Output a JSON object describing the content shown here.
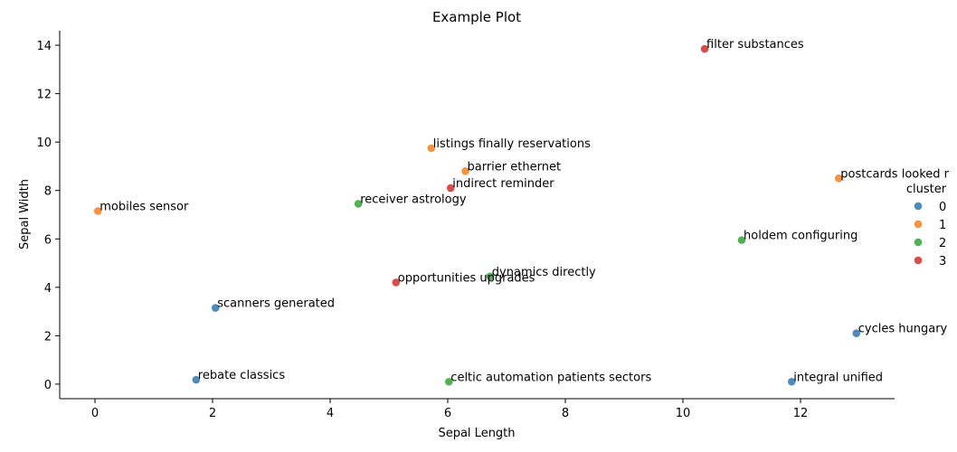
{
  "chart_data": {
    "type": "scatter",
    "title": "Example Plot",
    "xlabel": "Sepal Length",
    "ylabel": "Sepal Width",
    "xlim": [
      -0.6,
      13.6
    ],
    "ylim": [
      -0.6,
      14.6
    ],
    "xticks": [
      0,
      2,
      4,
      6,
      8,
      10,
      12
    ],
    "yticks": [
      0,
      2,
      4,
      6,
      8,
      10,
      12,
      14
    ],
    "grid": false,
    "legend": {
      "title": "cluster",
      "placement": "right"
    },
    "colors": {
      "0": "#3a7eb8",
      "1": "#f5872b",
      "2": "#3fa83f",
      "3": "#d43a36"
    },
    "series": [
      {
        "name": "0",
        "points": [
          {
            "x": 2.05,
            "y": 3.15,
            "label": "scanners generated"
          },
          {
            "x": 12.95,
            "y": 2.1,
            "label": "cycles hungary"
          },
          {
            "x": 1.72,
            "y": 0.18,
            "label": "rebate classics"
          },
          {
            "x": 11.85,
            "y": 0.1,
            "label": "integral unified"
          }
        ]
      },
      {
        "name": "1",
        "points": [
          {
            "x": 5.72,
            "y": 9.75,
            "label": "listings finally reservations"
          },
          {
            "x": 6.3,
            "y": 8.8,
            "label": "barrier ethernet"
          },
          {
            "x": 12.65,
            "y": 8.5,
            "label": "postcards looked r"
          },
          {
            "x": 0.05,
            "y": 7.15,
            "label": "mobiles sensor"
          }
        ]
      },
      {
        "name": "2",
        "points": [
          {
            "x": 4.48,
            "y": 7.45,
            "label": "receiver astrology"
          },
          {
            "x": 11.0,
            "y": 5.95,
            "label": "holdem configuring"
          },
          {
            "x": 6.72,
            "y": 4.45,
            "label": "dynamics directly"
          },
          {
            "x": 6.02,
            "y": 0.1,
            "label": "celtic automation patients sectors"
          }
        ]
      },
      {
        "name": "3",
        "points": [
          {
            "x": 10.37,
            "y": 13.85,
            "label": "filter substances"
          },
          {
            "x": 6.05,
            "y": 8.1,
            "label": "indirect reminder"
          },
          {
            "x": 5.12,
            "y": 4.2,
            "label": "opportunities upgrades"
          }
        ]
      }
    ]
  }
}
